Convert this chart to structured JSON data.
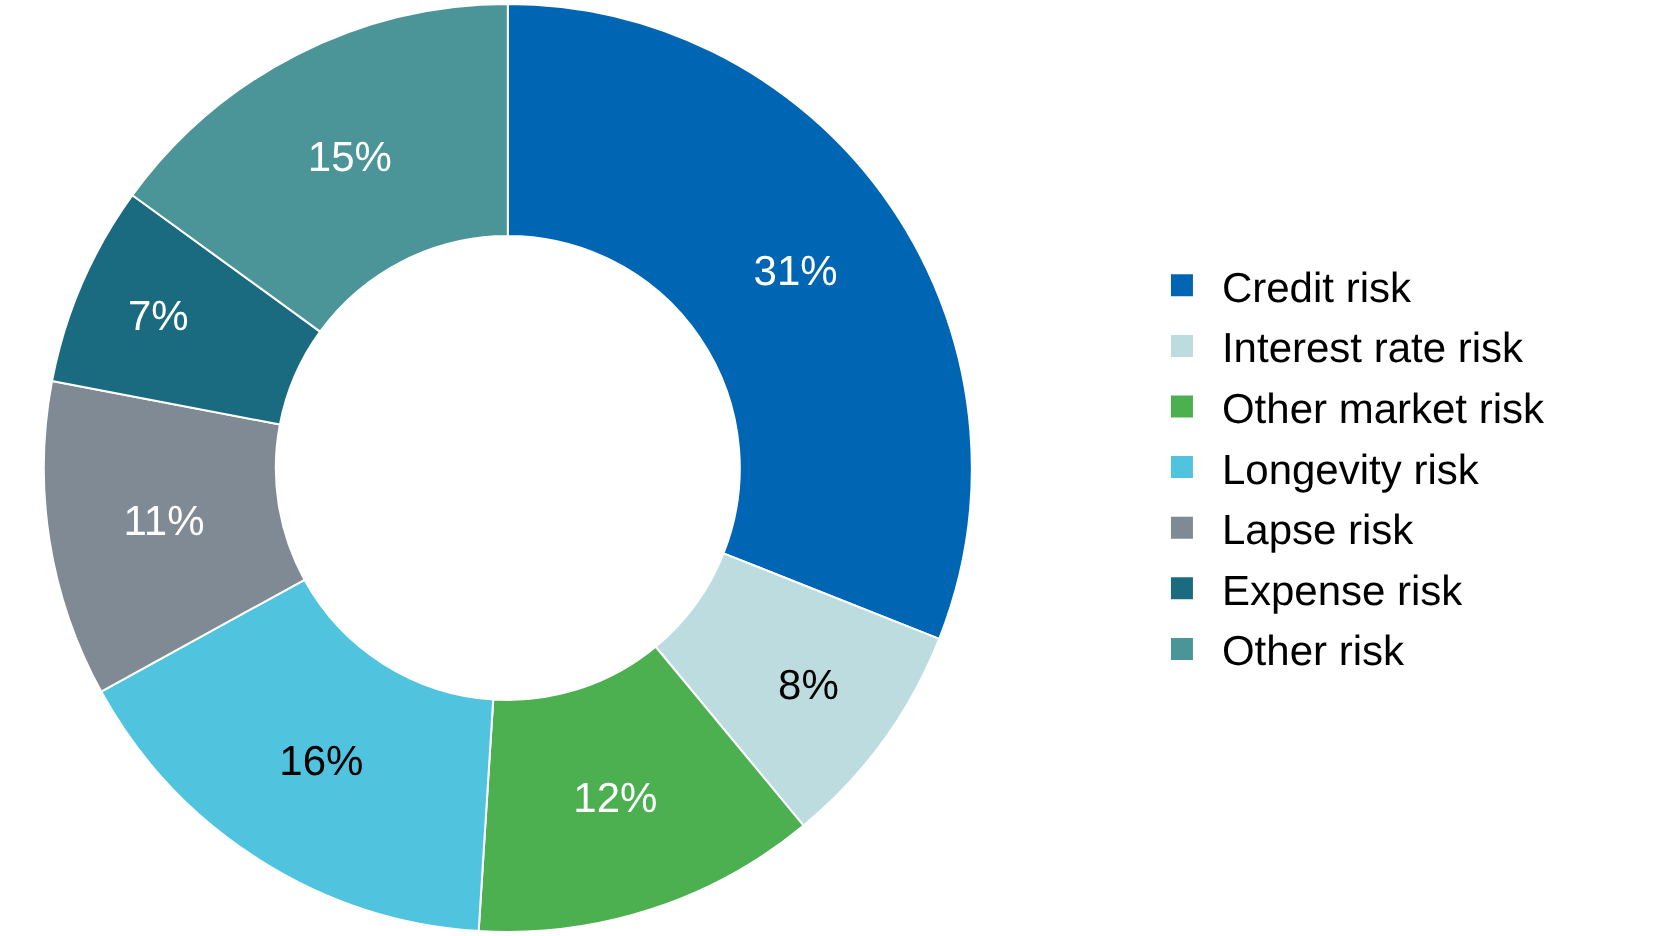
{
  "chart_data": {
    "type": "donut",
    "categories": [
      "Credit risk",
      "Interest rate risk",
      "Other market risk",
      "Longevity risk",
      "Lapse risk",
      "Expense risk",
      "Other risk"
    ],
    "values": [
      31,
      8,
      12,
      16,
      11,
      7,
      15
    ],
    "colors": [
      "#0066b3",
      "#bcdce0",
      "#4caf50",
      "#50c4df",
      "#7f8a94",
      "#1a6b80",
      "#4b9498"
    ],
    "value_labels": [
      "31%",
      "8%",
      "12%",
      "16%",
      "11%",
      "7%",
      "15%"
    ],
    "legend": "right"
  }
}
